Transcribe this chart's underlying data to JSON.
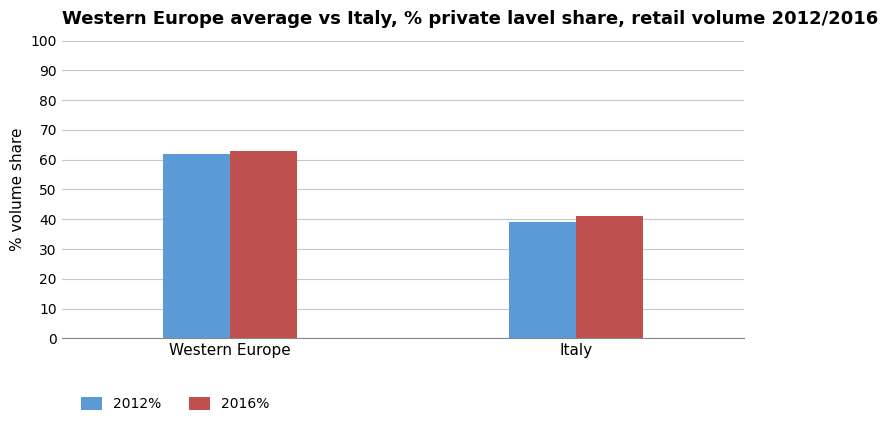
{
  "title": "Western Europe average vs Italy, % private lavel share, retail volume 2012/2016",
  "categories": [
    "Western Europe",
    "Italy"
  ],
  "series": {
    "2012%": [
      62,
      39
    ],
    "2016%": [
      63,
      41
    ]
  },
  "colors": {
    "2012%": "#5B9BD5",
    "2016%": "#C0504D"
  },
  "ylabel": "% volume share",
  "ylim": [
    0,
    100
  ],
  "yticks": [
    0,
    10,
    20,
    30,
    40,
    50,
    60,
    70,
    80,
    90,
    100
  ],
  "bar_width": 0.35,
  "background_color": "#FFFFFF",
  "grid_color": "#C8C8C8",
  "title_fontsize": 13,
  "label_fontsize": 11,
  "tick_fontsize": 10,
  "legend_fontsize": 10,
  "group_positions": [
    1.0,
    2.8
  ]
}
